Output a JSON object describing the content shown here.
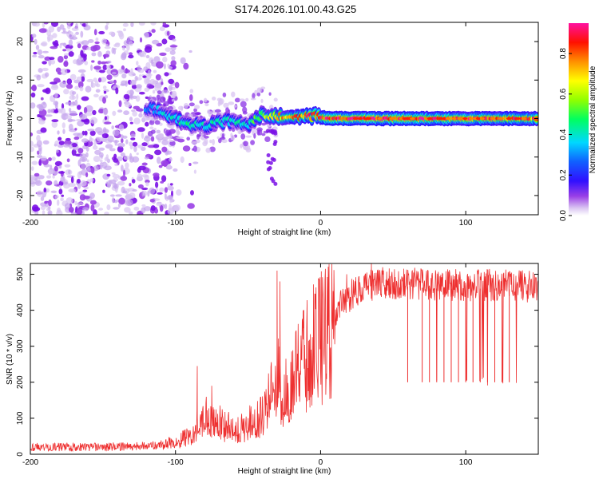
{
  "title": "S174.2026.101.00.43.G25",
  "chart_data": [
    {
      "type": "heatmap",
      "name": "spectrogram",
      "xlabel": "Height of straight line (km)",
      "ylabel": "Frequency (Hz)",
      "xlim": [
        -200,
        150
      ],
      "ylim": [
        -25,
        25
      ],
      "xticks": [
        -200,
        -100,
        0,
        100
      ],
      "yticks": [
        -20,
        -10,
        0,
        10,
        20
      ],
      "colorbar": {
        "label": "Normalized spectral amplitude",
        "range": [
          0,
          0.95
        ],
        "ticks": [
          0.0,
          0.2,
          0.4,
          0.6,
          0.8
        ],
        "tick_labels": [
          "0.0",
          "0.2",
          "0.4",
          "0.6",
          "0.8"
        ],
        "colormap": [
          "#e8d8f8",
          "#c8a8f0",
          "#8020e0",
          "#2000ff",
          "#00c0ff",
          "#00ff60",
          "#c0ff00",
          "#ffff00",
          "#ff8000",
          "#ff0000",
          "#ff00a0"
        ]
      },
      "ridge": {
        "x": [
          -120,
          -110,
          -100,
          -90,
          -80,
          -70,
          -60,
          -50,
          -40,
          -30,
          -20,
          -10,
          0,
          10,
          20,
          50,
          100,
          150
        ],
        "frequency": [
          3,
          2,
          0,
          -1.5,
          -2,
          -1,
          -0.5,
          -1.5,
          1,
          0.5,
          0.5,
          1,
          0.3,
          0,
          0,
          0,
          0,
          0
        ],
        "amplitude": [
          0.3,
          0.35,
          0.4,
          0.45,
          0.4,
          0.45,
          0.4,
          0.4,
          0.55,
          0.7,
          0.75,
          0.8,
          0.85,
          0.9,
          0.9,
          0.9,
          0.85,
          0.8
        ]
      }
    },
    {
      "type": "line",
      "name": "snr",
      "xlabel": "Height of straight line (km)",
      "ylabel": "SNR (10 * v/v)",
      "xlim": [
        -200,
        150
      ],
      "ylim": [
        0,
        530
      ],
      "xticks": [
        -200,
        -100,
        0,
        100
      ],
      "yticks": [
        0,
        100,
        200,
        300,
        400,
        500
      ],
      "color": "#ee3030",
      "envelope": {
        "x": [
          -200,
          -150,
          -110,
          -100,
          -90,
          -80,
          -70,
          -60,
          -50,
          -40,
          -35,
          -30,
          -25,
          -20,
          -15,
          -10,
          -5,
          0,
          5,
          10,
          15,
          20,
          30,
          40,
          60,
          80,
          100,
          120,
          150
        ],
        "y": [
          20,
          20,
          25,
          35,
          50,
          110,
          90,
          70,
          85,
          110,
          160,
          220,
          180,
          200,
          240,
          280,
          310,
          330,
          370,
          400,
          420,
          440,
          465,
          475,
          475,
          470,
          470,
          470,
          465
        ]
      },
      "spikes": [
        {
          "x": -85,
          "y": 245
        },
        {
          "x": -75,
          "y": 190
        },
        {
          "x": -30,
          "y": 510
        },
        {
          "x": -28,
          "y": 480
        },
        {
          "x": -12,
          "y": 400
        },
        {
          "x": 18,
          "y": 500
        },
        {
          "x": 35,
          "y": 530
        }
      ],
      "dips": [
        60,
        70,
        75,
        80,
        85,
        90,
        95,
        100,
        105,
        110,
        115,
        120,
        125,
        130
      ]
    }
  ]
}
